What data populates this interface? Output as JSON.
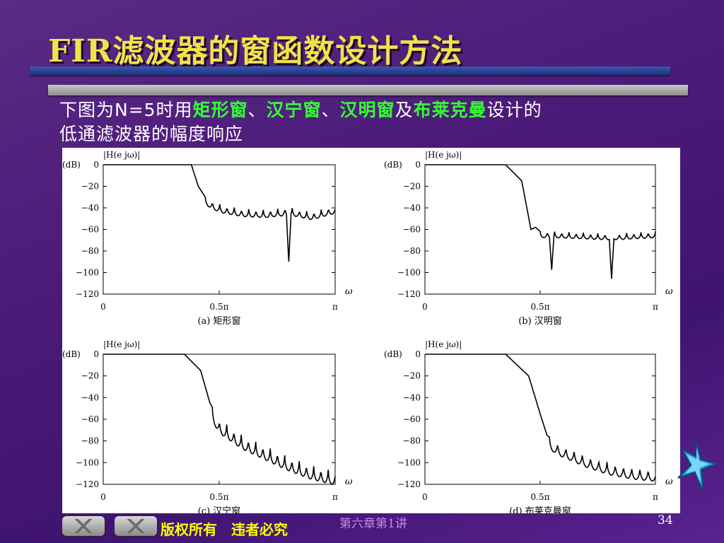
{
  "slide": {
    "title": "FIR滤波器的窗函数设计方法",
    "intro": {
      "prefix": "下图为N=5时用",
      "w1": "矩形窗",
      "sep1": "、",
      "w2": "汉宁窗",
      "sep2": "、",
      "w3": "汉明窗",
      "and": "及",
      "w4": "布莱克曼",
      "suffix": "设计的",
      "line2": "低通滤波器的幅度响应"
    },
    "footer": {
      "copyright": "版权所有　违者必究",
      "chapter": "第六章第1讲",
      "page": "34"
    },
    "colors": {
      "title": "#f2e24a",
      "highlight": "#33ff33",
      "text": "#ffffff"
    },
    "icons": [
      "nav-prev-button",
      "nav-next-button",
      "star-decoration"
    ]
  },
  "chart_data": [
    {
      "type": "line",
      "title": "(a) 矩形窗",
      "ylabel_top": "|H(e jω)|",
      "ylabel_unit": "(dB)",
      "xlabel": "ω",
      "xticks": [
        "0",
        "0.5π",
        "π"
      ],
      "yticks": [
        "0",
        "−20",
        "−40",
        "−60",
        "−80",
        "−100",
        "−120"
      ],
      "xlim": [
        0,
        1
      ],
      "ylim": [
        -120,
        0
      ],
      "x": [
        0,
        0.38,
        0.41,
        0.44,
        0.48,
        0.52,
        0.6,
        0.7,
        0.79,
        0.8,
        0.81,
        0.9,
        1.0
      ],
      "y": [
        0,
        0,
        -20,
        -30,
        -35,
        -38,
        -41,
        -42,
        -40,
        -83,
        -40,
        -44,
        -38
      ]
    },
    {
      "type": "line",
      "title": "(b) 汉明窗",
      "ylabel_top": "|H(e jω)|",
      "ylabel_unit": "(dB)",
      "xlabel": "ω",
      "xticks": [
        "0",
        "0.5π",
        "π"
      ],
      "yticks": [
        "0",
        "−20",
        "−40",
        "−60",
        "−80",
        "−100",
        "−120"
      ],
      "xlim": [
        0,
        1
      ],
      "ylim": [
        -120,
        0
      ],
      "x": [
        0,
        0.35,
        0.42,
        0.46,
        0.48,
        0.5,
        0.54,
        0.55,
        0.56,
        0.8,
        0.81,
        0.82,
        1.0
      ],
      "y": [
        0,
        0,
        -15,
        -60,
        -58,
        -62,
        -62,
        -92,
        -62,
        -64,
        -103,
        -64,
        -62
      ]
    },
    {
      "type": "line",
      "title": "(c) 汉宁窗",
      "ylabel_top": "|H(e jω)|",
      "ylabel_unit": "(dB)",
      "xlabel": "ω",
      "xticks": [
        "0",
        "0.5π",
        "π"
      ],
      "yticks": [
        "0",
        "−20",
        "−40",
        "−60",
        "−80",
        "−100",
        "−120"
      ],
      "xlim": [
        0,
        1
      ],
      "ylim": [
        -120,
        0
      ],
      "x": [
        0,
        0.35,
        0.42,
        0.46,
        0.5,
        0.6,
        0.7,
        0.8,
        0.9,
        1.0
      ],
      "y": [
        0,
        0,
        -15,
        -45,
        -60,
        -75,
        -85,
        -95,
        -103,
        -108
      ]
    },
    {
      "type": "line",
      "title": "(d) 布莱克曼窗",
      "ylabel_top": "|H(e jω)|",
      "ylabel_unit": "(dB)",
      "xlabel": "ω",
      "xticks": [
        "0",
        "0.5π",
        "π"
      ],
      "yticks": [
        "0",
        "−20",
        "−40",
        "−60",
        "−80",
        "−100",
        "−120"
      ],
      "xlim": [
        0,
        1
      ],
      "ylim": [
        -120,
        0
      ],
      "x": [
        0,
        0.35,
        0.45,
        0.5,
        0.53,
        0.58,
        0.7,
        0.8,
        0.9,
        1.0
      ],
      "y": [
        0,
        0,
        -20,
        -55,
        -75,
        -82,
        -93,
        -100,
        -104,
        -106
      ]
    }
  ]
}
